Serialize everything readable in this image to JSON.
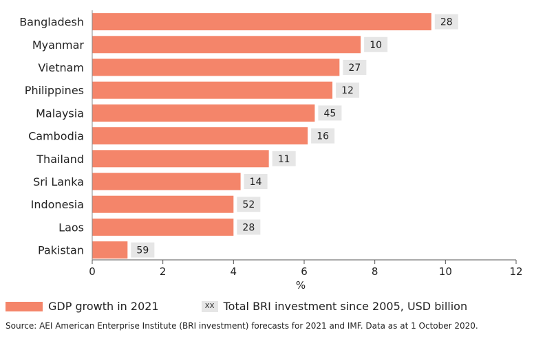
{
  "chart_data": {
    "type": "bar",
    "orientation": "horizontal",
    "categories": [
      "Bangladesh",
      "Myanmar",
      "Vietnam",
      "Philippines",
      "Malaysia",
      "Cambodia",
      "Thailand",
      "Sri Lanka",
      "Indonesia",
      "Laos",
      "Pakistan"
    ],
    "series": [
      {
        "name": "GDP growth in 2021",
        "values": [
          9.6,
          7.6,
          7.0,
          6.8,
          6.3,
          6.1,
          5.0,
          4.2,
          4.0,
          4.0,
          1.0
        ]
      }
    ],
    "data_labels": [
      "28",
      "10",
      "27",
      "12",
      "45",
      "16",
      "11",
      "14",
      "52",
      "28",
      "59"
    ],
    "xlabel": "%",
    "xlim": [
      0,
      12
    ],
    "xticks": [
      "0",
      "2",
      "4",
      "6",
      "8",
      "10",
      "12"
    ],
    "bar_color": "#f4856a",
    "label_box_color": "#e6e6e6",
    "grid": false
  },
  "legend": {
    "bar_label": "GDP growth in 2021",
    "badge_text": "XX",
    "badge_label": "Total BRI investment since 2005, USD billion"
  },
  "source": "Source: AEI American Enterprise Institute (BRI investment) forecasts for 2021 and IMF. Data as at 1 October 2020."
}
